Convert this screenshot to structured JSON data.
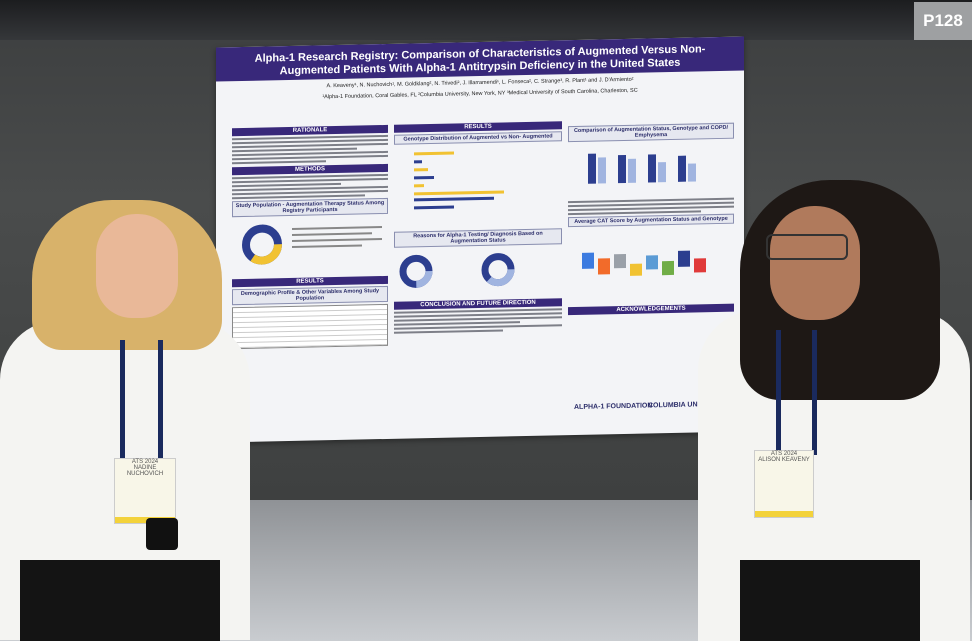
{
  "booth": {
    "number": "P128"
  },
  "poster": {
    "title": "Alpha-1 Research Registry: Comparison of Characteristics of Augmented Versus Non-Augmented Patients With Alpha-1 Antitrypsin Deficiency in the United States",
    "authors": "A. Keaveny¹, N. Nuchovich¹, M. Goldklang², N. Trivedi², J. Illarramendi¹, L. Fonseca², C. Strange³, R. Plant¹ and J. D'Armiento²",
    "affiliations": "¹Alpha-1 Foundation, Coral Gables, FL   ²Columbia University, New York, NY   ³Medical University of South Carolina, Charleston, SC",
    "sections": {
      "rationale": "RATIONALE",
      "methods": "METHODS",
      "results_left": "RESULTS",
      "results_top": "RESULTS",
      "conclusion": "CONCLUSION AND FUTURE DIRECTION",
      "acknowledgements": "ACKNOWLEDGEMENTS"
    },
    "figures": {
      "study_population": "Study Population - Augmentation Therapy Status Among Registry Participants",
      "genotype": "Genotype Distribution of Augmented vs Non- Augmented",
      "augmentation_status": "Comparison of Augmentation Status, Genotype and COPD/ Emphysema",
      "reasons": "Reasons for Alpha-1 Testing/ Diagnosis Based on Augmentation Status",
      "cat_score": "Average CAT Score by Augmentation Status and Genotype",
      "demographic": "Demographic Profile & Other Variables Among Study Population"
    },
    "logos": [
      "ALPHA-1 FOUNDATION",
      "COLUMBIA UNIVERSITY"
    ]
  },
  "badges": {
    "left": {
      "org": "ATS 2024",
      "name": "NADINE NUCHOVICH"
    },
    "right": {
      "org": "ATS 2024",
      "name": "ALISON KEAVENY"
    }
  },
  "colors": {
    "poster_header": "#38287a",
    "wall": "#464848",
    "badge_stripe": "#f3d23a"
  }
}
